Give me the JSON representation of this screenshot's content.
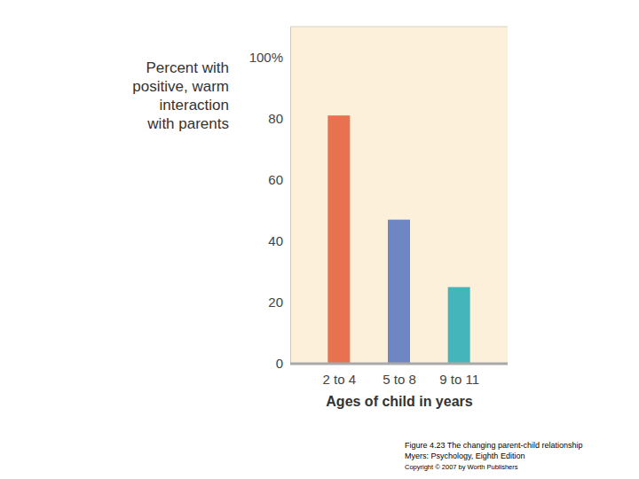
{
  "chart_data": {
    "type": "bar",
    "ylabel": [
      "Percent with",
      "positive, warm",
      "interaction",
      "with parents"
    ],
    "xlabel": "Ages of child in years",
    "categories": [
      "2 to 4",
      "5 to 8",
      "9 to 11"
    ],
    "values": [
      81,
      47,
      25
    ],
    "colors": [
      "#e8714f",
      "#6e87c4",
      "#45b5bc"
    ],
    "ylim": [
      0,
      110
    ],
    "yticks": [
      0,
      20,
      40,
      60,
      80,
      {
        "value": 100,
        "label": "100%"
      }
    ],
    "grid": false,
    "caption": [
      "Figure 4.23 The changing parent-child relationship",
      "Myers: Psychology, Eighth Edition",
      "Copyright © 2007 by Worth Publishers"
    ]
  }
}
